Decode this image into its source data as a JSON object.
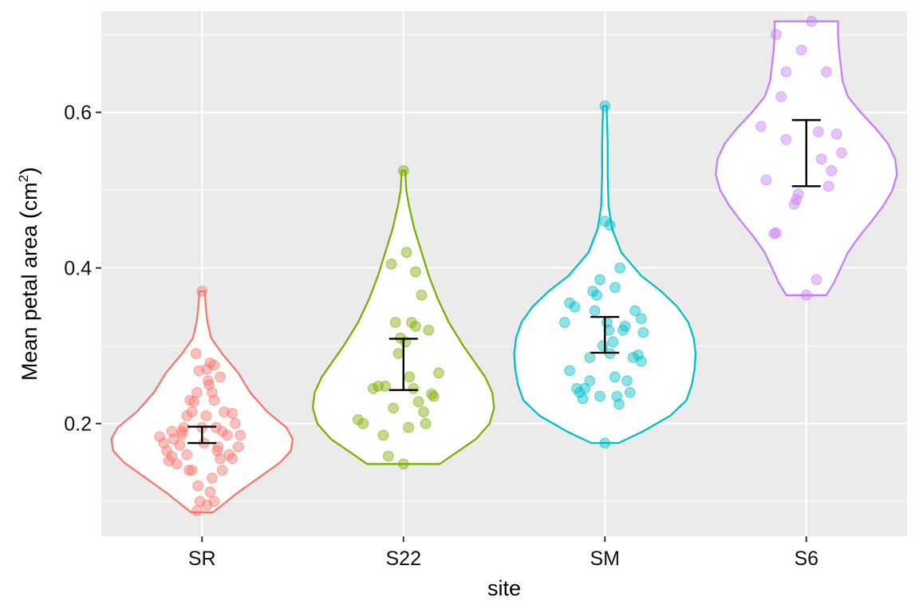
{
  "chart_data": {
    "type": "violin",
    "xlabel": "site",
    "ylabel": {
      "main": "Mean petal area ",
      "unit": "cm",
      "superscript": "2"
    },
    "ylim": [
      0.055,
      0.73
    ],
    "yticks": [
      0.2,
      0.4,
      0.6
    ],
    "ytick_labels": [
      "0.2",
      "0.4",
      "0.6"
    ],
    "y_minor_ticks": [
      0.1,
      0.3,
      0.5,
      0.7
    ],
    "grid": true,
    "legend": "none",
    "colors": {
      "panel": "#EBEBEB",
      "grid": "#FFFFFF",
      "errorbar": "#000000"
    },
    "categories": [
      "SR",
      "S22",
      "SM",
      "S6"
    ],
    "sites": [
      {
        "name": "SR",
        "color": "#F8766D",
        "min": 0.086,
        "max": 0.37,
        "density": [
          [
            0.086,
            0.12
          ],
          [
            0.095,
            0.22
          ],
          [
            0.11,
            0.38
          ],
          [
            0.13,
            0.62
          ],
          [
            0.15,
            0.86
          ],
          [
            0.165,
            0.98
          ],
          [
            0.18,
            1.0
          ],
          [
            0.195,
            0.93
          ],
          [
            0.215,
            0.72
          ],
          [
            0.24,
            0.53
          ],
          [
            0.265,
            0.4
          ],
          [
            0.29,
            0.22
          ],
          [
            0.31,
            0.1
          ],
          [
            0.33,
            0.06
          ],
          [
            0.35,
            0.04
          ],
          [
            0.37,
            0.03
          ]
        ],
        "ci": [
          0.175,
          0.196
        ],
        "points": [
          [
            -0.42,
            0.183
          ],
          [
            -0.38,
            0.175
          ],
          [
            -0.35,
            0.165
          ],
          [
            -0.33,
            0.152
          ],
          [
            -0.3,
            0.158
          ],
          [
            -0.28,
            0.18
          ],
          [
            -0.25,
            0.148
          ],
          [
            -0.22,
            0.172
          ],
          [
            -0.2,
            0.186
          ],
          [
            -0.18,
            0.195
          ],
          [
            -0.15,
            0.16
          ],
          [
            -0.13,
            0.14
          ],
          [
            -0.1,
            0.215
          ],
          [
            -0.08,
            0.228
          ],
          [
            -0.05,
            0.24
          ],
          [
            -0.03,
            0.268
          ],
          [
            0.0,
            0.195
          ],
          [
            0.02,
            0.175
          ],
          [
            0.04,
            0.21
          ],
          [
            0.06,
            0.255
          ],
          [
            0.08,
            0.278
          ],
          [
            0.1,
            0.24
          ],
          [
            0.12,
            0.23
          ],
          [
            0.14,
            0.195
          ],
          [
            0.16,
            0.17
          ],
          [
            0.18,
            0.155
          ],
          [
            0.2,
            0.19
          ],
          [
            0.22,
            0.215
          ],
          [
            0.25,
            0.185
          ],
          [
            0.27,
            0.16
          ],
          [
            0.3,
            0.155
          ],
          [
            0.33,
            0.2
          ],
          [
            0.36,
            0.17
          ],
          [
            0.38,
            0.185
          ],
          [
            -0.02,
            0.1
          ],
          [
            0.05,
            0.095
          ],
          [
            0.12,
            0.1
          ],
          [
            -0.05,
            0.088
          ],
          [
            0.08,
            0.112
          ],
          [
            -0.04,
            0.12
          ],
          [
            0.0,
            0.37
          ],
          [
            -0.1,
            0.14
          ],
          [
            0.1,
            0.13
          ],
          [
            0.15,
            0.165
          ],
          [
            -0.2,
            0.19
          ],
          [
            0.2,
            0.14
          ],
          [
            0.3,
            0.213
          ],
          [
            -0.3,
            0.19
          ],
          [
            -0.12,
            0.23
          ],
          [
            0.12,
            0.275
          ],
          [
            0.05,
            0.27
          ],
          [
            -0.06,
            0.29
          ],
          [
            0.18,
            0.26
          ],
          [
            0.07,
            0.25
          ],
          [
            -0.15,
            0.21
          ]
        ]
      },
      {
        "name": "S22",
        "color": "#7CAE00",
        "min": 0.148,
        "max": 0.525,
        "density": [
          [
            0.148,
            0.4
          ],
          [
            0.16,
            0.55
          ],
          [
            0.18,
            0.8
          ],
          [
            0.2,
            0.95
          ],
          [
            0.22,
            1.0
          ],
          [
            0.24,
            0.98
          ],
          [
            0.26,
            0.9
          ],
          [
            0.28,
            0.78
          ],
          [
            0.3,
            0.66
          ],
          [
            0.33,
            0.5
          ],
          [
            0.36,
            0.38
          ],
          [
            0.39,
            0.28
          ],
          [
            0.42,
            0.2
          ],
          [
            0.45,
            0.12
          ],
          [
            0.48,
            0.06
          ],
          [
            0.5,
            0.03
          ],
          [
            0.525,
            0.02
          ]
        ],
        "ci": [
          0.243,
          0.309
        ],
        "points": [
          [
            -0.45,
            0.205
          ],
          [
            -0.4,
            0.2
          ],
          [
            -0.3,
            0.245
          ],
          [
            -0.25,
            0.248
          ],
          [
            -0.2,
            0.185
          ],
          [
            -0.15,
            0.158
          ],
          [
            -0.1,
            0.22
          ],
          [
            -0.05,
            0.29
          ],
          [
            0.0,
            0.148
          ],
          [
            0.0,
            0.525
          ],
          [
            0.03,
            0.42
          ],
          [
            0.05,
            0.195
          ],
          [
            0.08,
            0.33
          ],
          [
            0.1,
            0.245
          ],
          [
            0.12,
            0.395
          ],
          [
            0.15,
            0.228
          ],
          [
            0.18,
            0.365
          ],
          [
            0.2,
            0.215
          ],
          [
            0.22,
            0.2
          ],
          [
            0.25,
            0.32
          ],
          [
            0.28,
            0.238
          ],
          [
            0.3,
            0.235
          ],
          [
            0.35,
            0.265
          ],
          [
            -0.03,
            0.31
          ],
          [
            0.02,
            0.305
          ],
          [
            -0.08,
            0.33
          ],
          [
            -0.12,
            0.405
          ],
          [
            -0.18,
            0.248
          ],
          [
            0.06,
            0.26
          ],
          [
            0.12,
            0.325
          ]
        ]
      },
      {
        "name": "SM",
        "color": "#00BFC4",
        "min": 0.175,
        "max": 0.608,
        "density": [
          [
            0.175,
            0.15
          ],
          [
            0.19,
            0.42
          ],
          [
            0.21,
            0.72
          ],
          [
            0.23,
            0.9
          ],
          [
            0.25,
            0.96
          ],
          [
            0.27,
            0.99
          ],
          [
            0.29,
            1.0
          ],
          [
            0.31,
            0.98
          ],
          [
            0.33,
            0.92
          ],
          [
            0.35,
            0.8
          ],
          [
            0.37,
            0.62
          ],
          [
            0.39,
            0.4
          ],
          [
            0.42,
            0.18
          ],
          [
            0.45,
            0.08
          ],
          [
            0.48,
            0.04
          ],
          [
            0.52,
            0.03
          ],
          [
            0.56,
            0.03
          ],
          [
            0.608,
            0.02
          ]
        ],
        "ci": [
          0.291,
          0.337
        ],
        "points": [
          [
            -0.4,
            0.33
          ],
          [
            -0.35,
            0.355
          ],
          [
            -0.3,
            0.35
          ],
          [
            -0.35,
            0.268
          ],
          [
            -0.28,
            0.245
          ],
          [
            -0.25,
            0.24
          ],
          [
            -0.22,
            0.232
          ],
          [
            -0.2,
            0.245
          ],
          [
            -0.15,
            0.255
          ],
          [
            -0.12,
            0.37
          ],
          [
            -0.1,
            0.345
          ],
          [
            -0.08,
            0.365
          ],
          [
            -0.05,
            0.385
          ],
          [
            -0.02,
            0.3
          ],
          [
            0.0,
            0.175
          ],
          [
            0.0,
            0.608
          ],
          [
            0.02,
            0.33
          ],
          [
            0.04,
            0.32
          ],
          [
            0.05,
            0.29
          ],
          [
            0.08,
            0.305
          ],
          [
            0.1,
            0.375
          ],
          [
            0.12,
            0.235
          ],
          [
            0.14,
            0.225
          ],
          [
            0.15,
            0.4
          ],
          [
            0.18,
            0.32
          ],
          [
            0.2,
            0.325
          ],
          [
            0.22,
            0.255
          ],
          [
            0.25,
            0.24
          ],
          [
            0.28,
            0.285
          ],
          [
            0.3,
            0.345
          ],
          [
            0.33,
            0.288
          ],
          [
            0.36,
            0.28
          ],
          [
            0.38,
            0.317
          ],
          [
            0.36,
            0.335
          ],
          [
            -0.05,
            0.235
          ],
          [
            0.0,
            0.46
          ],
          [
            0.05,
            0.455
          ],
          [
            0.1,
            0.26
          ],
          [
            -0.15,
            0.285
          ]
        ]
      },
      {
        "name": "S6",
        "color": "#C77CFF",
        "min": 0.365,
        "max": 0.717,
        "density": [
          [
            0.365,
            0.22
          ],
          [
            0.38,
            0.3
          ],
          [
            0.4,
            0.38
          ],
          [
            0.42,
            0.46
          ],
          [
            0.44,
            0.58
          ],
          [
            0.46,
            0.72
          ],
          [
            0.48,
            0.85
          ],
          [
            0.5,
            0.95
          ],
          [
            0.52,
            1.0
          ],
          [
            0.54,
            0.98
          ],
          [
            0.56,
            0.9
          ],
          [
            0.58,
            0.76
          ],
          [
            0.6,
            0.6
          ],
          [
            0.62,
            0.46
          ],
          [
            0.64,
            0.4
          ],
          [
            0.66,
            0.38
          ],
          [
            0.68,
            0.36
          ],
          [
            0.7,
            0.35
          ],
          [
            0.717,
            0.35
          ]
        ],
        "ci": [
          0.505,
          0.59
        ],
        "points": [
          [
            -0.45,
            0.582
          ],
          [
            -0.3,
            0.7
          ],
          [
            -0.2,
            0.652
          ],
          [
            -0.2,
            0.565
          ],
          [
            -0.25,
            0.62
          ],
          [
            -0.3,
            0.445
          ],
          [
            -0.32,
            0.444
          ],
          [
            -0.1,
            0.488
          ],
          [
            -0.12,
            0.482
          ],
          [
            -0.08,
            0.495
          ],
          [
            -0.05,
            0.68
          ],
          [
            0.05,
            0.717
          ],
          [
            0.1,
            0.385
          ],
          [
            0.12,
            0.575
          ],
          [
            0.2,
            0.652
          ],
          [
            0.15,
            0.54
          ],
          [
            0.22,
            0.505
          ],
          [
            0.25,
            0.525
          ],
          [
            0.3,
            0.572
          ],
          [
            0.35,
            0.548
          ],
          [
            -0.4,
            0.513
          ],
          [
            0.0,
            0.365
          ]
        ]
      }
    ]
  }
}
